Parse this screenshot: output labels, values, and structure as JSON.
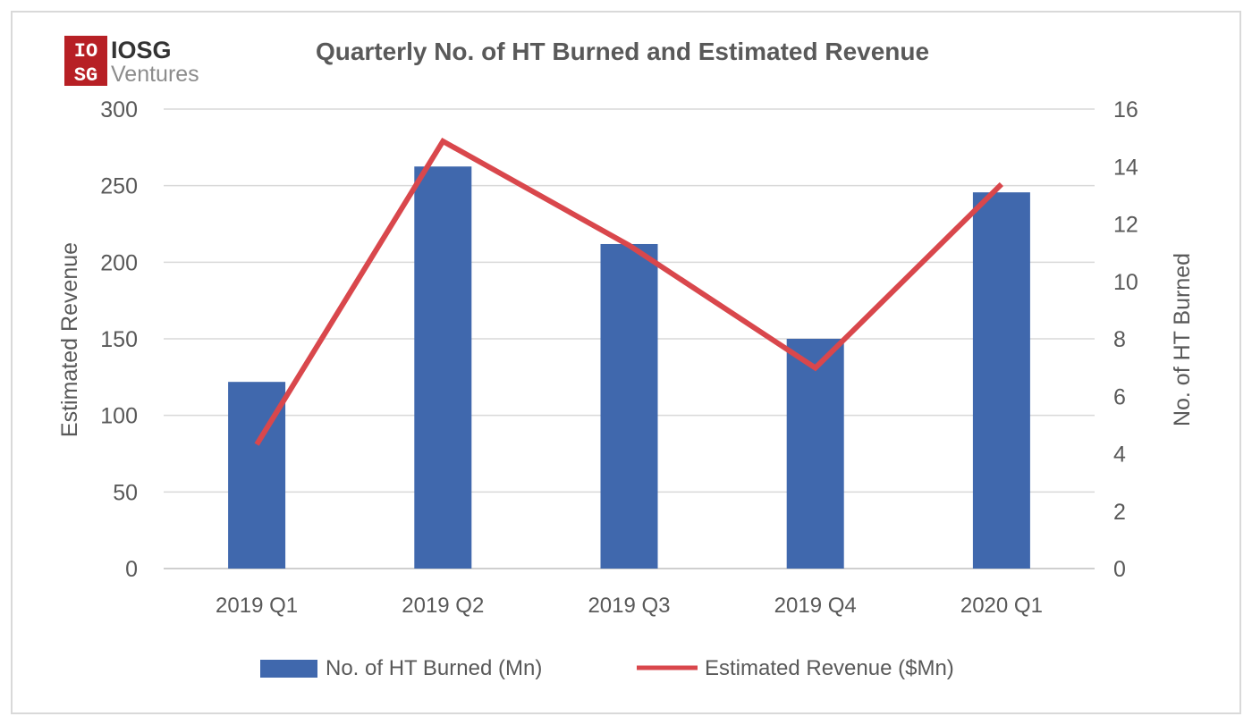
{
  "logo": {
    "box_top": "IO",
    "box_bottom": "SG",
    "main": "IOSG",
    "sub": "Ventures",
    "box_color": "#b72025"
  },
  "chart_data": {
    "type": "bar",
    "title": "Quarterly No. of HT Burned and Estimated Revenue",
    "categories": [
      "2019 Q1",
      "2019 Q2",
      "2019 Q3",
      "2019 Q4",
      "2020 Q1"
    ],
    "series": [
      {
        "name": "No. of HT Burned (Mn)",
        "type": "bar",
        "axis": "right",
        "values": [
          6.5,
          14.0,
          11.3,
          8.0,
          13.1
        ],
        "color": "#4068ad"
      },
      {
        "name": "Estimated Revenue ($Mn)",
        "type": "line",
        "axis": "left",
        "values": [
          81,
          279,
          211,
          131,
          251
        ],
        "color": "#d9474c"
      }
    ],
    "y_left": {
      "label": "Estimated Revenue",
      "lim": [
        0,
        300
      ],
      "ticks": [
        "0",
        "50",
        "100",
        "150",
        "200",
        "250",
        "300"
      ]
    },
    "y_right": {
      "label": "No. of HT Burned",
      "lim": [
        0,
        16
      ],
      "ticks": [
        "0",
        "2",
        "4",
        "6",
        "8",
        "10",
        "12",
        "14",
        "16"
      ]
    },
    "grid": true,
    "legend_position": "bottom"
  }
}
